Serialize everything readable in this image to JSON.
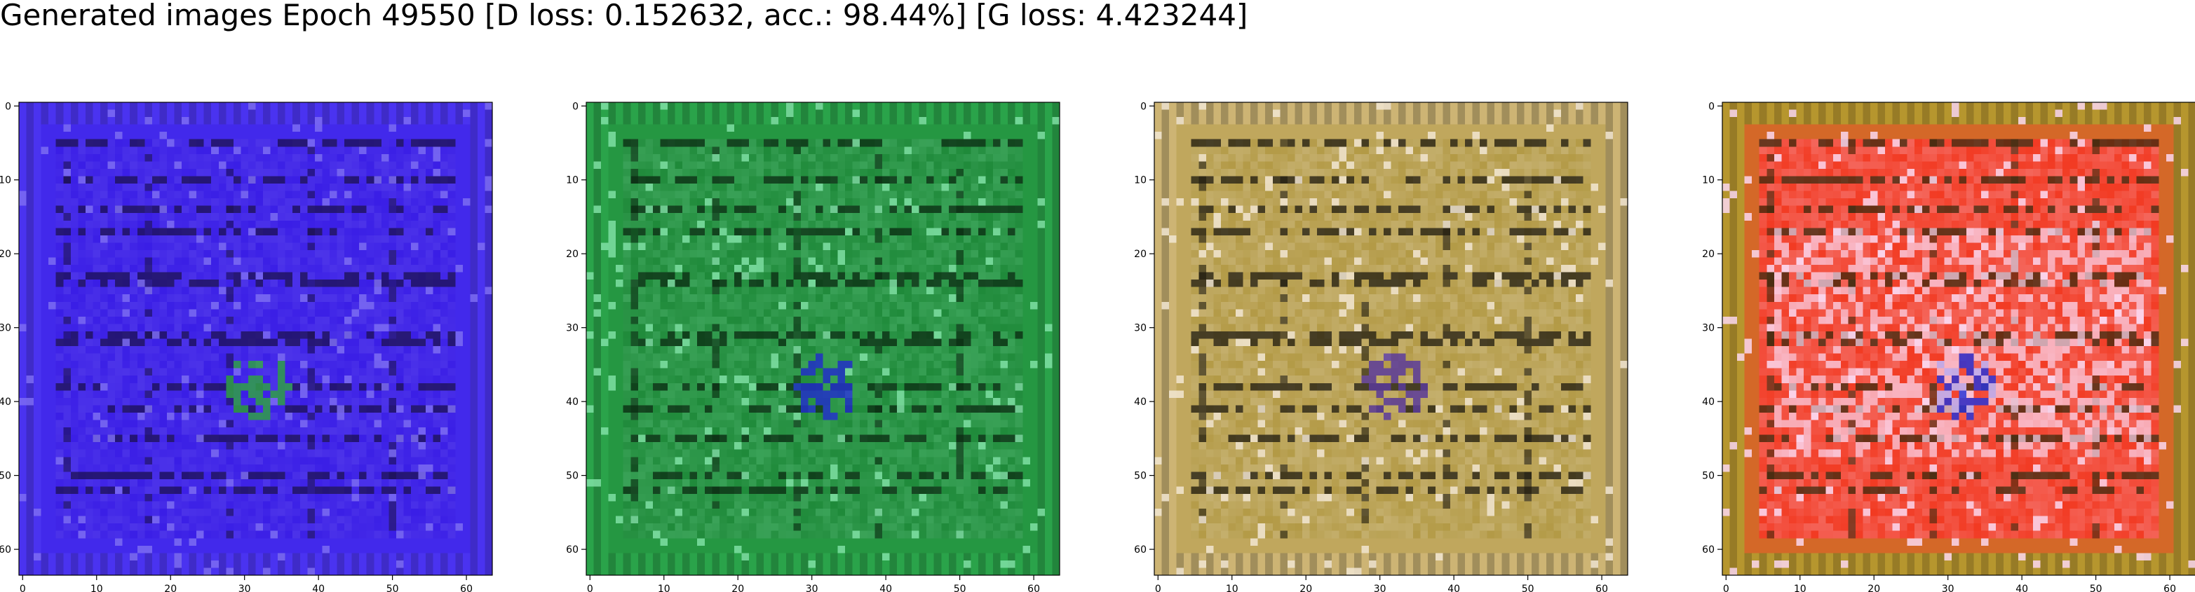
{
  "title": "Generated images Epoch 49550 [D loss: 0.152632, acc.: 98.44%] [G loss: 4.423244]",
  "chart_data": [
    {
      "type": "heatmap",
      "xlim": [
        -0.5,
        63.5
      ],
      "ylim": [
        63.5,
        -0.5
      ],
      "x_ticks": [
        0,
        10,
        20,
        30,
        40,
        50,
        60
      ],
      "y_ticks": [
        0,
        10,
        20,
        30,
        40,
        50,
        60
      ],
      "palette": {
        "base": "#3a1ee6",
        "frame": "#4a33f0",
        "dark": "#1c1150",
        "light": "#7c6cf2",
        "accent": "#2fa046"
      }
    },
    {
      "type": "heatmap",
      "xlim": [
        -0.5,
        63.5
      ],
      "ylim": [
        63.5,
        -0.5
      ],
      "x_ticks": [
        0,
        10,
        20,
        30,
        40,
        50,
        60
      ],
      "y_ticks": [
        0,
        10,
        20,
        30,
        40,
        50,
        60
      ],
      "palette": {
        "base": "#1f8a3a",
        "frame": "#2aa34a",
        "dark": "#0b2a12",
        "light": "#7fe0a4",
        "accent": "#2230c8"
      }
    },
    {
      "type": "heatmap",
      "xlim": [
        -0.5,
        63.5
      ],
      "ylim": [
        63.5,
        -0.5
      ],
      "x_ticks": [
        0,
        10,
        20,
        30,
        40,
        50,
        60
      ],
      "y_ticks": [
        0,
        10,
        20,
        30,
        40,
        50,
        60
      ],
      "palette": {
        "base": "#b39a46",
        "frame": "#cdb474",
        "dark": "#1e1a10",
        "light": "#f2e6d2",
        "accent": "#5a3a9a"
      }
    },
    {
      "type": "heatmap",
      "xlim": [
        -0.5,
        63.5
      ],
      "ylim": [
        63.5,
        -0.5
      ],
      "x_ticks": [
        0,
        10,
        20,
        30,
        40,
        50,
        60
      ],
      "y_ticks": [
        0,
        10,
        20,
        30,
        40,
        50,
        60
      ],
      "palette": {
        "base": "#f23a22",
        "frame": "#b6962e",
        "dark": "#3a2a0e",
        "light": "#fbd8f0",
        "accent": "#2a34d6"
      }
    }
  ]
}
